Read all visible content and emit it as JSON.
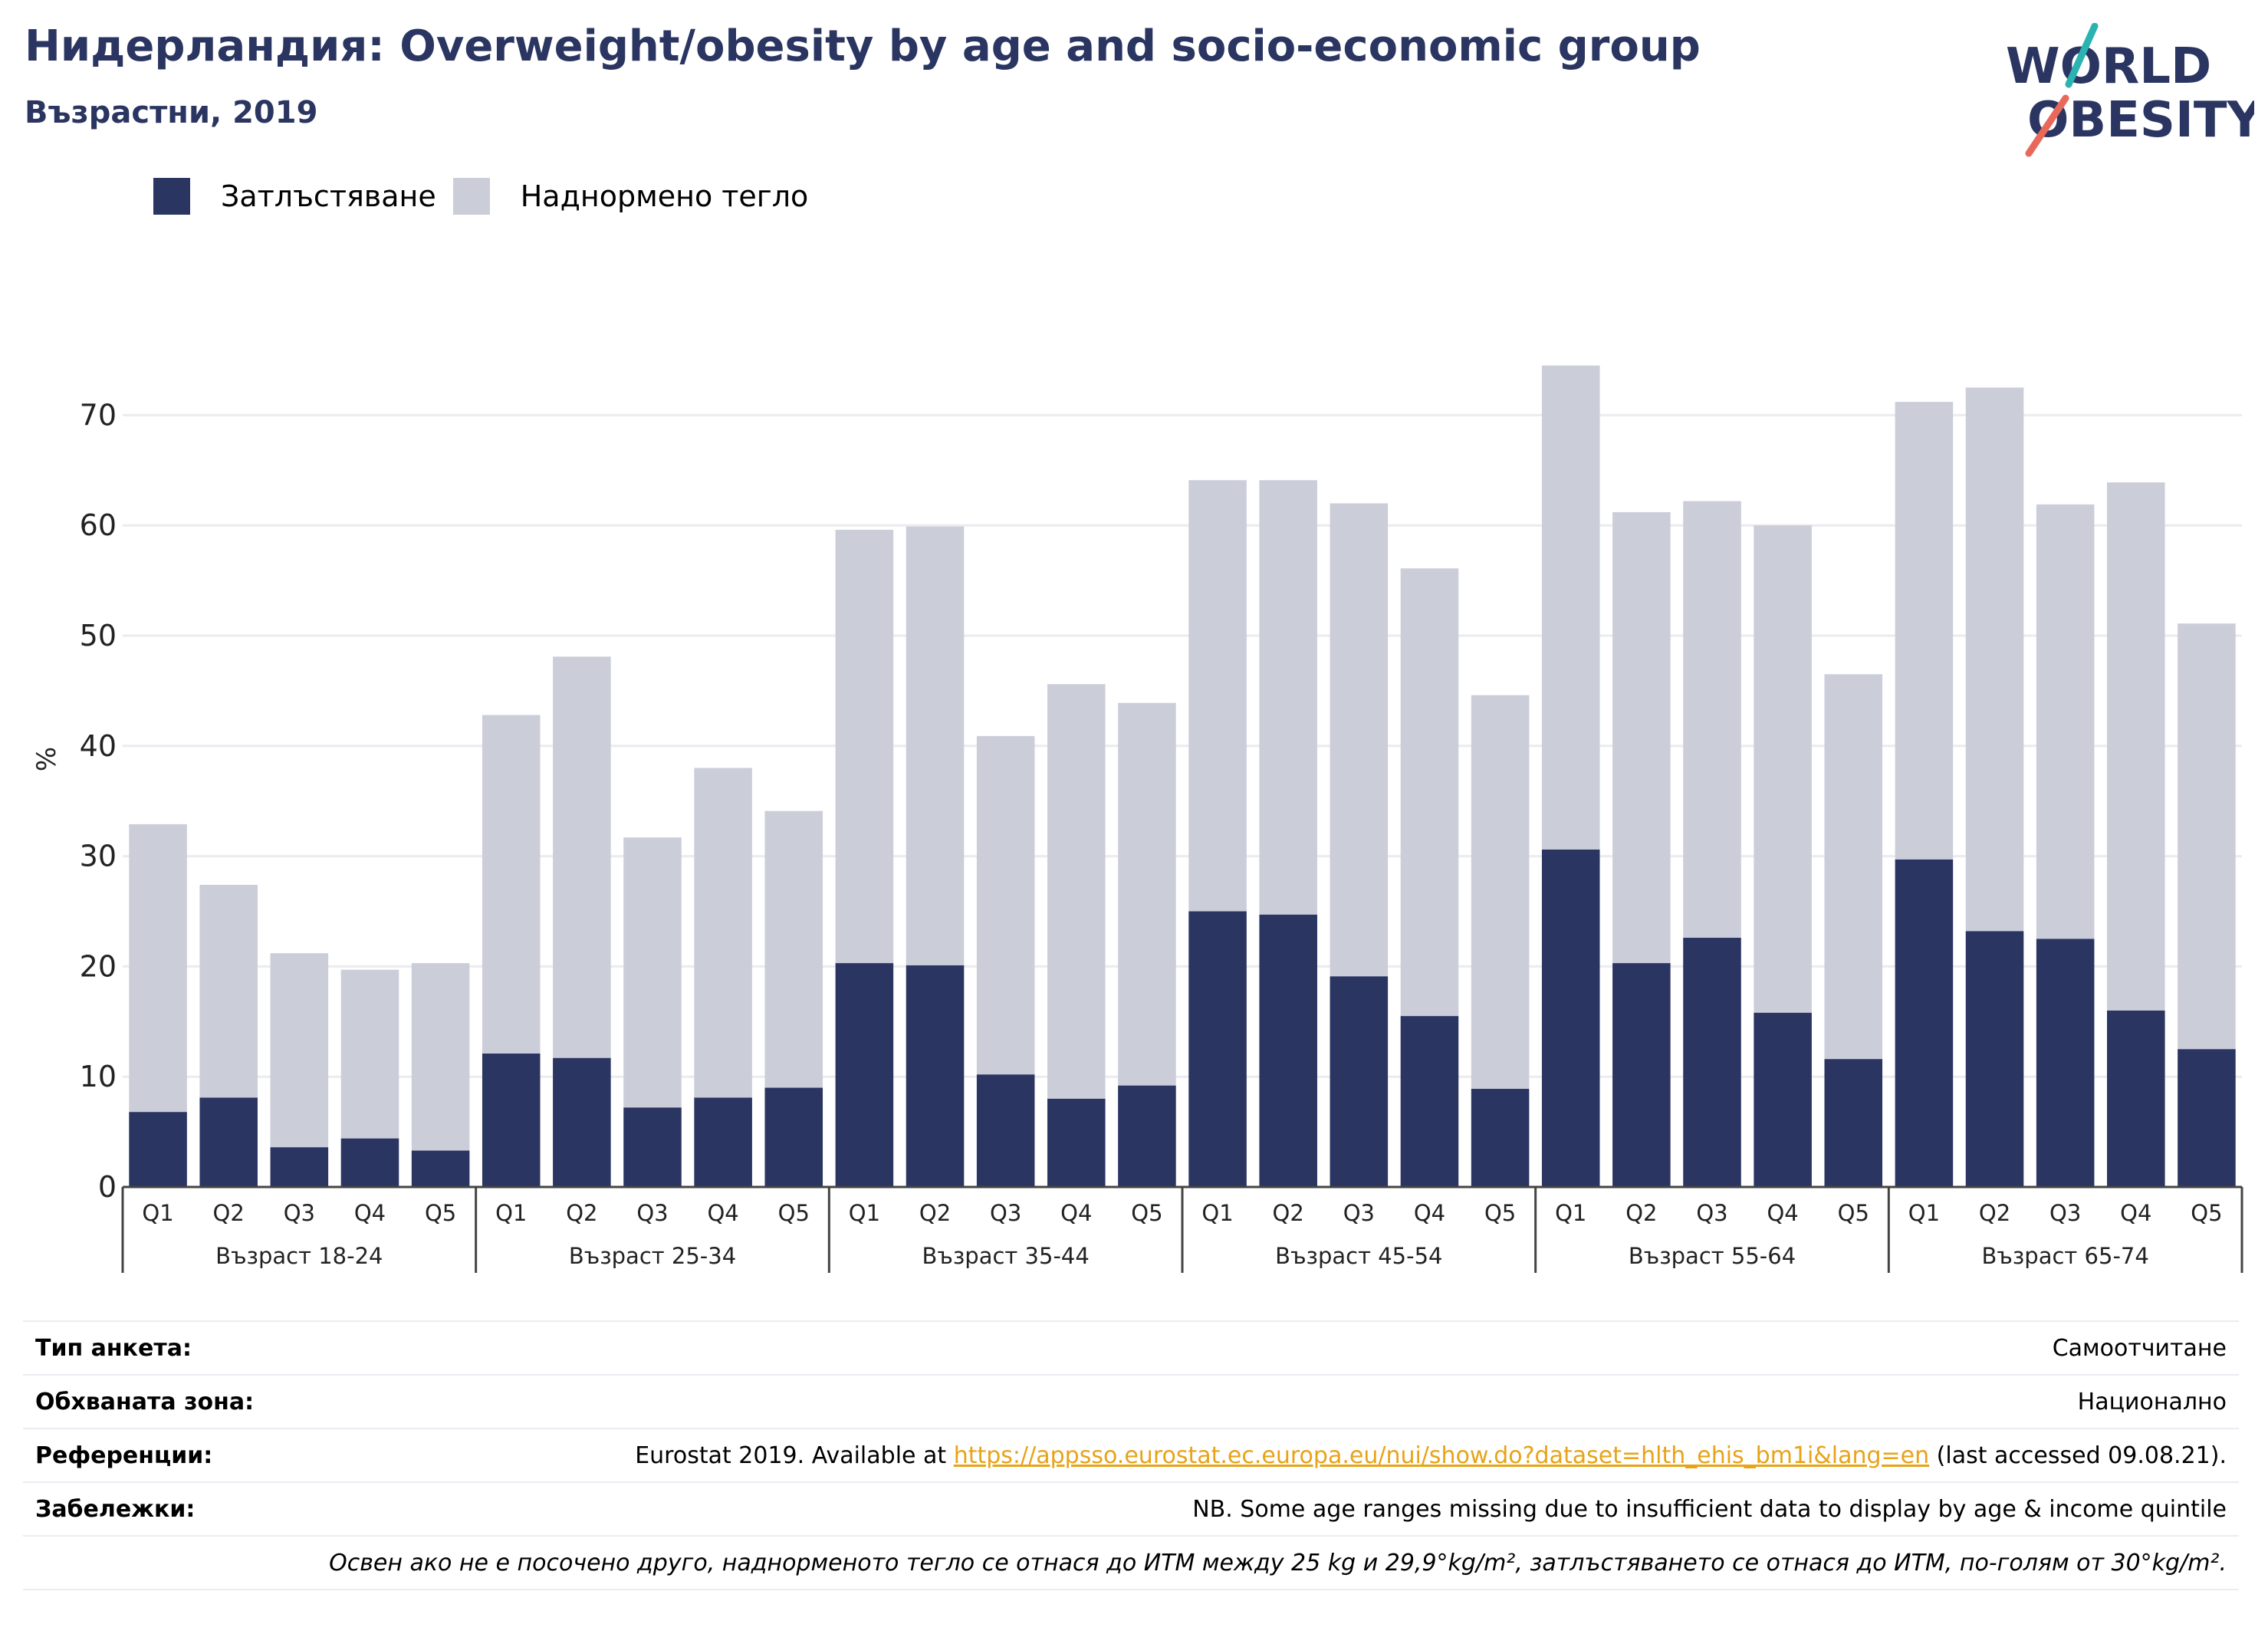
{
  "header": {
    "title": "Нидерландия: Overweight/obesity by age and socio-economic group",
    "subtitle": "Възрастни, 2019"
  },
  "logo": {
    "line1": "WORLD",
    "line2": "OBESITY"
  },
  "colors": {
    "obesity": "#2b3562",
    "overweight": "#cbcdd9",
    "title": "#2a3561",
    "link": "#e8a317",
    "logo_teal": "#2ab3b1",
    "logo_coral": "#e8685a"
  },
  "chart_data": {
    "type": "bar",
    "stacked": true,
    "ylabel": "%",
    "ylim": [
      0,
      75
    ],
    "yticks": [
      0,
      10,
      20,
      30,
      40,
      50,
      60,
      70
    ],
    "grid": true,
    "legend_position": "top-left",
    "legend": [
      "Затлъстяване",
      "Наднормено тегло"
    ],
    "subcategories": [
      "Q1",
      "Q2",
      "Q3",
      "Q4",
      "Q5"
    ],
    "groups": [
      "Възраст 18-24",
      "Възраст 25-34",
      "Възраст 35-44",
      "Възраст 45-54",
      "Възраст 55-64",
      "Възраст 65-74"
    ],
    "series": [
      {
        "name": "Затлъстяване",
        "values": [
          6.8,
          8.1,
          3.6,
          4.4,
          3.3,
          12.1,
          11.7,
          7.2,
          8.1,
          9.0,
          20.3,
          20.1,
          10.2,
          8.0,
          9.2,
          25.0,
          24.7,
          19.1,
          15.5,
          8.9,
          30.6,
          20.3,
          22.6,
          15.8,
          11.6,
          29.7,
          23.2,
          22.5,
          16.0,
          12.5
        ]
      },
      {
        "name": "Наднормено тегло",
        "values": [
          26.1,
          19.3,
          17.6,
          15.3,
          17.0,
          30.7,
          36.4,
          24.5,
          29.9,
          25.1,
          39.3,
          39.8,
          30.7,
          37.6,
          34.7,
          39.1,
          39.4,
          42.9,
          40.6,
          35.7,
          43.9,
          40.9,
          39.6,
          44.2,
          34.9,
          41.5,
          49.3,
          39.4,
          47.9,
          38.6
        ]
      }
    ]
  },
  "footer": {
    "rows": [
      {
        "label": "Тип анкета:",
        "value": "Самоотчитане"
      },
      {
        "label": "Обхваната зона:",
        "value": "Национално"
      },
      {
        "label": "Референции:",
        "value_prefix": "Eurostat 2019. Available at ",
        "link": "https://appsso.eurostat.ec.europa.eu/nui/show.do?dataset=hlth_ehis_bm1i&lang=en",
        "value_suffix": " (last accessed 09.08.21)."
      },
      {
        "label": "Забележки:",
        "value": "NB. Some age ranges missing due to insufficient data to display by age & income quintile"
      }
    ],
    "note": "Освен ако не е посочено друго, наднорменото тегло се отнася до ИТМ между 25 kg и 29,9°kg/m², затлъстяването се отнася до ИТМ, по-голям от 30°kg/m²."
  }
}
